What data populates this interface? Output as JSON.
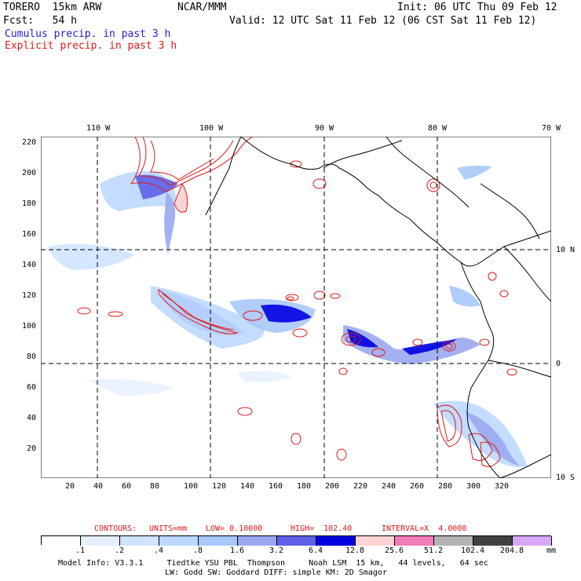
{
  "header": {
    "model": "TORERO  15km ARW",
    "org": "NCAR/MMM",
    "init": "Init: 06 UTC Thu 09 Feb 12",
    "fcst": "Fcst:   54 h",
    "valid": "Valid: 12 UTC Sat 11 Feb 12 (06 CST Sat 11 Feb 12)",
    "cumulus_label": "Cumulus precip. in past 3 h",
    "explicit_label": "Explicit precip. in past 3 h"
  },
  "colors": {
    "cumulus": "#1f1fd0",
    "explicit": "#e01818",
    "dashed_grid": "#000000"
  },
  "map": {
    "lon_labels": [
      "110 W",
      "100 W",
      "90 W",
      "80 W",
      "70 W"
    ],
    "lat_labels": [
      "10 N",
      "0",
      "10 S"
    ],
    "y_ticks": [
      "220",
      "200",
      "180",
      "160",
      "140",
      "120",
      "100",
      "80",
      "60",
      "40",
      "20"
    ],
    "x_ticks": [
      "20",
      "40",
      "60",
      "80",
      "100",
      "120",
      "140",
      "160",
      "180",
      "200",
      "220",
      "240",
      "260",
      "280",
      "300",
      "320"
    ]
  },
  "contour_info": {
    "contours": "CONTOURS:",
    "units": "UNITS=mm",
    "low": "LOW= 0.10000",
    "high": "HIGH=  102.40",
    "interval": "INTERVAL=X  4.0000"
  },
  "legend": {
    "values": [
      ".1",
      ".2",
      ".4",
      ".8",
      "1.6",
      "3.2",
      "6.4",
      "12.8",
      "25.6",
      "51.2",
      "102.4",
      "204.8"
    ],
    "unit": "mm",
    "colors": [
      "#ffffff",
      "#e8f0ff",
      "#d0e4ff",
      "#bcd8ff",
      "#a8c8f8",
      "#9aa8f0",
      "#6060e8",
      "#0000e0",
      "#fcd4d4",
      "#f07cb8",
      "#b4b4b4",
      "#404040",
      "#d8a8f8"
    ]
  },
  "footer": {
    "line1": "Model Info: V3.3.1     Tiedtke YSU PBL  Thompson     Noah LSM  15 km,   44 levels,   64 sec",
    "line2": "LW: Godd SW: Goddard DIFF: simple KM: 2D Smagor"
  }
}
